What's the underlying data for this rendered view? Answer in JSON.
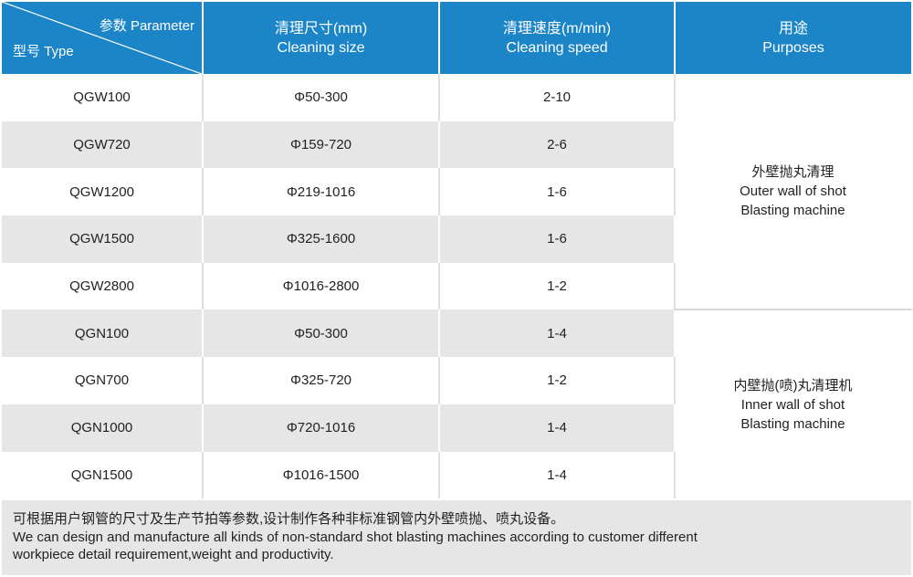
{
  "header": {
    "parameter": "参数 Parameter",
    "type": "型号 Type",
    "size_cn": "清理尺寸(mm)",
    "size_en": "Cleaning size",
    "speed_cn": "清理速度(m/min)",
    "speed_en": "Cleaning speed",
    "purpose_cn": "用途",
    "purpose_en": "Purposes"
  },
  "rows": [
    {
      "model": "QGW100",
      "size": "Φ50-300",
      "speed": "2-10"
    },
    {
      "model": "QGW720",
      "size": "Φ159-720",
      "speed": "2-6"
    },
    {
      "model": "QGW1200",
      "size": "Φ219-1016",
      "speed": "1-6"
    },
    {
      "model": "QGW1500",
      "size": "Φ325-1600",
      "speed": "1-6"
    },
    {
      "model": "QGW2800",
      "size": "Φ1016-2800",
      "speed": "1-2"
    },
    {
      "model": "QGN100",
      "size": "Φ50-300",
      "speed": "1-4"
    },
    {
      "model": "QGN700",
      "size": "Φ325-720",
      "speed": "1-2"
    },
    {
      "model": "QGN1000",
      "size": "Φ720-1016",
      "speed": "1-4"
    },
    {
      "model": "QGN1500",
      "size": "Φ1016-1500",
      "speed": "1-4"
    }
  ],
  "purposes": [
    {
      "cn": "外壁抛丸清理",
      "en1": "Outer wall of shot",
      "en2": "Blasting machine"
    },
    {
      "cn": "内壁抛(喷)丸清理机",
      "en1": "Inner wall of shot",
      "en2": "Blasting machine"
    }
  ],
  "footer": {
    "line_cn": "可根据用户钢管的尺寸及生产节拍等参数,设计制作各种非标准钢管内外壁喷抛、喷丸设备。",
    "line_en1": "We can design and manufacture all kinds of non-standard shot blasting machines according to customer different",
    "line_en2": "workpiece detail requirement,weight and productivity."
  },
  "colors": {
    "header_bg": "#1c85c8",
    "stripe_bg": "#e6e6e6",
    "text": "#222222"
  }
}
